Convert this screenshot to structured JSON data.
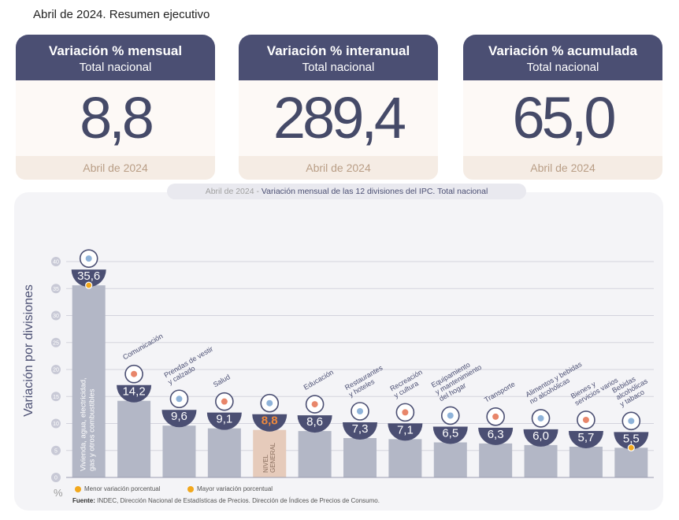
{
  "page_title": "Abril de 2024. Resumen ejecutivo",
  "kpis": [
    {
      "title": "Variación % mensual",
      "subtitle": "Total nacional",
      "value": "8,8",
      "period": "Abril de 2024"
    },
    {
      "title": "Variación % interanual",
      "subtitle": "Total nacional",
      "value": "289,4",
      "period": "Abril de 2024"
    },
    {
      "title": "Variación % acumulada",
      "subtitle": "Total nacional",
      "value": "65,0",
      "period": "Abril de 2024"
    }
  ],
  "chart_subtitle": {
    "date": "Abril de 2024",
    "separator": "-",
    "text": "Variación mensual de las 12 divisiones del IPC. Total nacional"
  },
  "y_axis_label": "Variación por divisiones",
  "y_unit": "%",
  "legend": {
    "min_label": "Menor variación porcentual",
    "max_label": "Mayor variación porcentual"
  },
  "source": {
    "label": "Fuente:",
    "text": "INDEC, Dirección Nacional de Estadísticas de Precios. Dirección de Índices de Precios de Consumo."
  },
  "colors": {
    "header": "#4b4f73",
    "bar": "#b3b7c6",
    "bar_general": "#e6cbbb",
    "general_value": "#f08a3c",
    "marker": "#f2a81d"
  },
  "chart_data": {
    "type": "bar",
    "ylim": [
      0,
      40
    ],
    "yticks": [
      "0",
      "5",
      "10",
      "15",
      "20",
      "25",
      "30",
      "35",
      "40"
    ],
    "categories": [
      "Vivienda, agua, electricidad, gas y otros combustibles",
      "Comunicación",
      "Prendas de vestir y calzado",
      "Salud",
      "Nivel general",
      "Educación",
      "Restaurantes y hoteles",
      "Recreación y cultura",
      "Equipamiento y mantenimiento del hogar",
      "Transporte",
      "Alimentos y bebidas no alcohólicas",
      "Bienes y servicios varios",
      "Bebidas alcohólicas y tabaco"
    ],
    "values": [
      35.6,
      14.2,
      9.6,
      9.1,
      8.8,
      8.6,
      7.3,
      7.1,
      6.5,
      6.3,
      6.0,
      5.7,
      5.5
    ],
    "value_labels": [
      "35,6",
      "14,2",
      "9,6",
      "9,1",
      "8,8",
      "8,6",
      "7,3",
      "7,1",
      "6,5",
      "6,3",
      "6,0",
      "5,7",
      "5,5"
    ],
    "category_label_lines": [
      [
        "Vivienda, agua, electricidad,",
        "gas y otros combustibles"
      ],
      [
        "Comunicación"
      ],
      [
        "Prendas de vestir",
        "y calzado"
      ],
      [
        "Salud"
      ],
      [
        "NIVEL",
        "GENERAL"
      ],
      [
        "Educación"
      ],
      [
        "Restaurantes",
        "y hoteles"
      ],
      [
        "Recreación",
        "y cultura"
      ],
      [
        "Equipamiento",
        "y mantenimiento",
        "del hogar"
      ],
      [
        "Transporte"
      ],
      [
        "Alimentos y bebidas",
        "no alcohólicas"
      ],
      [
        "Bienes y",
        "servicios varios"
      ],
      [
        "Bebidas",
        "alcohólicas",
        "y tabaco"
      ]
    ],
    "icons": [
      "bulb-icon",
      "phone-icon",
      "shirt-icon",
      "health-cross-icon",
      "shopping-basket-icon",
      "book-icon",
      "plate-icon",
      "umbrella-icon",
      "appliance-icon",
      "bus-icon",
      "chicken-icon",
      "scissors-icon",
      "bottles-icon"
    ],
    "highlight_general_index": 4,
    "max_index": 0,
    "min_index": 12,
    "grid": true
  }
}
